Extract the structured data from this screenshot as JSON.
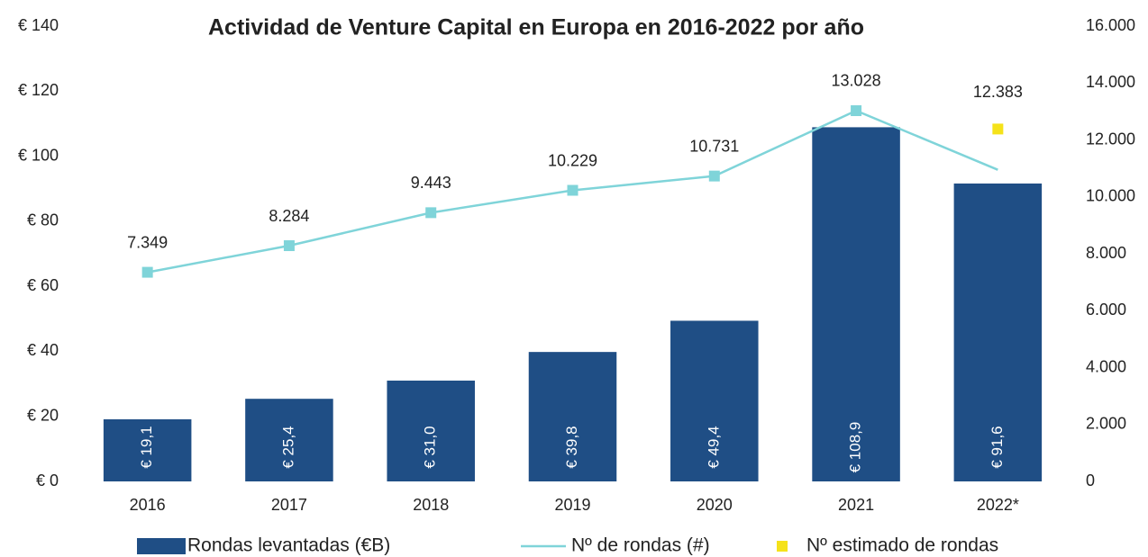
{
  "chart_data": {
    "type": "bar",
    "title": "Actividad de Venture Capital en Europa en 2016-2022 por año",
    "categories": [
      "2016",
      "2017",
      "2018",
      "2019",
      "2020",
      "2021",
      "2022*"
    ],
    "series": [
      {
        "name": "Rondas levantadas (€B)",
        "type": "bar",
        "color": "#1f4e85",
        "values": [
          19.1,
          25.4,
          31.0,
          39.8,
          49.4,
          108.9,
          91.6
        ],
        "value_labels": [
          "€ 19,1",
          "€ 25,4",
          "€ 31,0",
          "€ 39,8",
          "€ 49,4",
          "€ 108,9",
          "€ 91,6"
        ]
      },
      {
        "name": "Nº de rondas (#)",
        "type": "line",
        "axis": "y2",
        "color": "#7fd4d9",
        "values": [
          7349,
          8284,
          9443,
          10229,
          10731,
          13028,
          10950
        ],
        "value_labels": [
          "7.349",
          "8.284",
          "9.443",
          "10.229",
          "10.731",
          "13.028",
          null
        ]
      },
      {
        "name": "Nº estimado de rondas",
        "type": "scatter",
        "axis": "y2",
        "color": "#f5e21a",
        "values": [
          null,
          null,
          null,
          null,
          null,
          null,
          12383
        ],
        "value_labels": [
          null,
          null,
          null,
          null,
          null,
          null,
          "12.383"
        ]
      }
    ],
    "ylim": [
      0,
      140
    ],
    "yticks": [
      {
        "value": 0,
        "label": "€ 0"
      },
      {
        "value": 20,
        "label": "€ 20"
      },
      {
        "value": 40,
        "label": "€ 40"
      },
      {
        "value": 60,
        "label": "€ 60"
      },
      {
        "value": 80,
        "label": "€ 80"
      },
      {
        "value": 100,
        "label": "€ 100"
      },
      {
        "value": 120,
        "label": "€ 120"
      },
      {
        "value": 140,
        "label": "€ 140"
      }
    ],
    "y2lim": [
      0,
      16000
    ],
    "y2ticks": [
      0,
      {
        "value": 2000,
        "label": "2.000"
      },
      {
        "value": 4000,
        "label": "4.000"
      },
      {
        "value": 6000,
        "label": "6.000"
      },
      {
        "value": 8000,
        "label": "8.000"
      },
      {
        "value": 10000,
        "label": "10.000"
      },
      {
        "value": 12000,
        "label": "12.000"
      },
      {
        "value": 14000,
        "label": "14.000"
      },
      {
        "value": 16000,
        "label": "16.000"
      }
    ],
    "grid": false,
    "legend": "bottom"
  }
}
